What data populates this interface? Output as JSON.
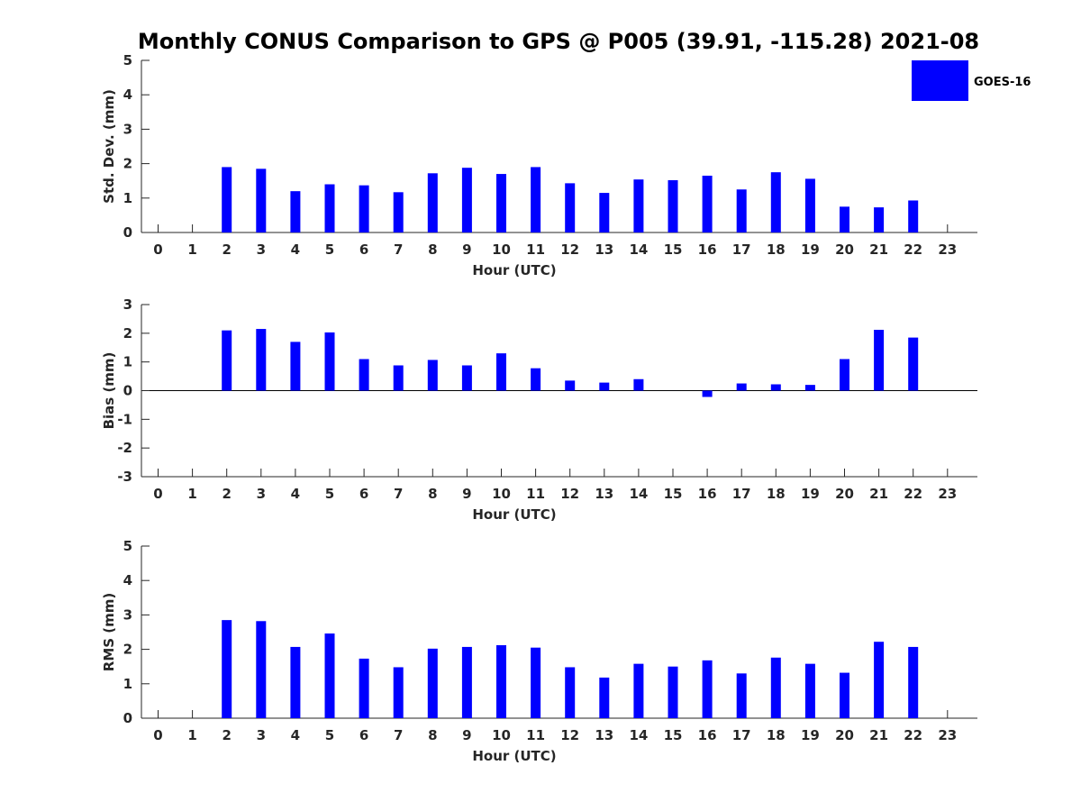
{
  "chart_data": [
    {
      "type": "bar",
      "title": "Monthly CONUS Comparison to GPS @ P005 (39.91, -115.28) 2021-08",
      "xlabel": "Hour (UTC)",
      "ylabel": "Std. Dev. (mm)",
      "ylim": [
        0,
        5
      ],
      "yticks": [
        0,
        1,
        2,
        3,
        4,
        5
      ],
      "categories": [
        "0",
        "1",
        "2",
        "3",
        "4",
        "5",
        "6",
        "7",
        "8",
        "9",
        "10",
        "11",
        "12",
        "13",
        "14",
        "15",
        "16",
        "17",
        "18",
        "19",
        "20",
        "21",
        "22",
        "23"
      ],
      "series": [
        {
          "name": "GOES-16",
          "color": "#0000ff",
          "values": [
            null,
            null,
            1.9,
            1.85,
            1.2,
            1.4,
            1.37,
            1.17,
            1.72,
            1.88,
            1.7,
            1.9,
            1.43,
            1.15,
            1.54,
            1.52,
            1.65,
            1.25,
            1.75,
            1.56,
            0.75,
            0.73,
            0.93,
            null
          ]
        }
      ],
      "legend": {
        "position": "top-right",
        "entries": [
          "GOES-16"
        ]
      },
      "grid": false
    },
    {
      "type": "bar",
      "xlabel": "Hour (UTC)",
      "ylabel": "Bias (mm)",
      "ylim": [
        -3,
        3
      ],
      "yticks": [
        -3,
        -2,
        -1,
        0,
        1,
        2,
        3
      ],
      "zero_line": true,
      "categories": [
        "0",
        "1",
        "2",
        "3",
        "4",
        "5",
        "6",
        "7",
        "8",
        "9",
        "10",
        "11",
        "12",
        "13",
        "14",
        "15",
        "16",
        "17",
        "18",
        "19",
        "20",
        "21",
        "22",
        "23"
      ],
      "series": [
        {
          "name": "GOES-16",
          "color": "#0000ff",
          "values": [
            null,
            null,
            2.1,
            2.15,
            1.7,
            2.03,
            1.1,
            0.88,
            1.07,
            0.88,
            1.3,
            0.78,
            0.35,
            0.28,
            0.4,
            0.0,
            -0.22,
            0.25,
            0.22,
            0.2,
            1.1,
            2.12,
            1.85,
            null
          ]
        }
      ],
      "grid": false
    },
    {
      "type": "bar",
      "xlabel": "Hour (UTC)",
      "ylabel": "RMS (mm)",
      "ylim": [
        0,
        5
      ],
      "yticks": [
        0,
        1,
        2,
        3,
        4,
        5
      ],
      "categories": [
        "0",
        "1",
        "2",
        "3",
        "4",
        "5",
        "6",
        "7",
        "8",
        "9",
        "10",
        "11",
        "12",
        "13",
        "14",
        "15",
        "16",
        "17",
        "18",
        "19",
        "20",
        "21",
        "22",
        "23"
      ],
      "series": [
        {
          "name": "GOES-16",
          "color": "#0000ff",
          "values": [
            null,
            null,
            2.85,
            2.82,
            2.07,
            2.46,
            1.73,
            1.48,
            2.02,
            2.07,
            2.12,
            2.05,
            1.48,
            1.18,
            1.58,
            1.5,
            1.68,
            1.3,
            1.76,
            1.58,
            1.32,
            2.22,
            2.07,
            null
          ]
        }
      ],
      "grid": false
    }
  ]
}
